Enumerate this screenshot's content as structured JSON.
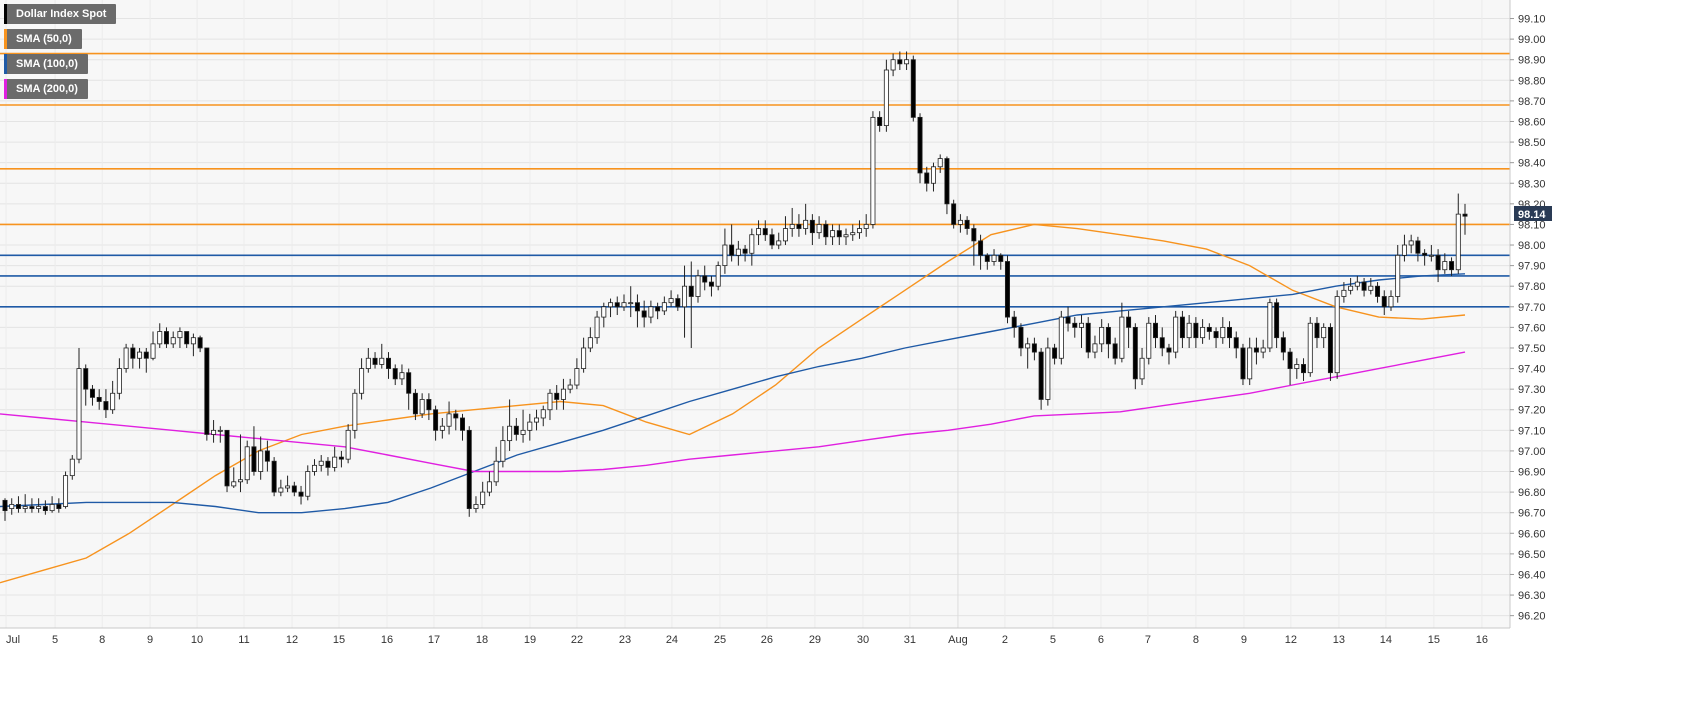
{
  "chart_data": {
    "type": "candlestick",
    "title": "Dollar Index Spot",
    "legend": [
      {
        "label": "Dollar Index Spot",
        "color": "#000000"
      },
      {
        "label": "SMA (50,0)",
        "color": "#f7931e"
      },
      {
        "label": "SMA (100,0)",
        "color": "#1f5aa6"
      },
      {
        "label": "SMA (200,0)",
        "color": "#e020e0"
      }
    ],
    "last_price": "98.14",
    "ylim": [
      96.14,
      99.19
    ],
    "y_ticks": [
      "99.10",
      "99.00",
      "98.90",
      "98.80",
      "98.70",
      "98.60",
      "98.50",
      "98.40",
      "98.30",
      "98.20",
      "98.10",
      "98.00",
      "97.90",
      "97.80",
      "97.70",
      "97.60",
      "97.50",
      "97.40",
      "97.30",
      "97.20",
      "97.10",
      "97.00",
      "96.90",
      "96.80",
      "96.70",
      "96.60",
      "96.50",
      "96.40",
      "96.30",
      "96.20"
    ],
    "x_ticks": [
      "Jul",
      "5",
      "8",
      "9",
      "10",
      "11",
      "12",
      "15",
      "16",
      "17",
      "18",
      "19",
      "22",
      "23",
      "24",
      "25",
      "26",
      "29",
      "30",
      "31",
      "Aug",
      "2",
      "5",
      "6",
      "7",
      "8",
      "9",
      "12",
      "13",
      "14",
      "15",
      "16"
    ],
    "grid": true,
    "horizontal_levels": [
      {
        "value": 98.93,
        "color": "#f7931e"
      },
      {
        "value": 98.68,
        "color": "#f7931e"
      },
      {
        "value": 98.37,
        "color": "#f7931e"
      },
      {
        "value": 98.1,
        "color": "#f7931e"
      },
      {
        "value": 97.95,
        "color": "#1f5aa6"
      },
      {
        "value": 97.85,
        "color": "#1f5aa6"
      },
      {
        "value": 97.7,
        "color": "#1f5aa6"
      }
    ],
    "candles": [
      [
        96.76,
        96.71,
        96.77,
        96.66
      ],
      [
        96.72,
        96.74,
        96.77,
        96.69
      ],
      [
        96.74,
        96.72,
        96.78,
        96.7
      ],
      [
        96.72,
        96.73,
        96.79,
        96.7
      ],
      [
        96.73,
        96.72,
        96.77,
        96.7
      ],
      [
        96.72,
        96.73,
        96.77,
        96.7
      ],
      [
        96.73,
        96.71,
        96.76,
        96.69
      ],
      [
        96.71,
        96.74,
        96.78,
        96.7
      ],
      [
        96.74,
        96.72,
        96.77,
        96.7
      ],
      [
        96.73,
        96.88,
        96.9,
        96.72
      ],
      [
        96.88,
        96.96,
        96.98,
        96.86
      ],
      [
        96.96,
        97.4,
        97.5,
        96.94
      ],
      [
        97.4,
        97.3,
        97.42,
        97.22
      ],
      [
        97.3,
        97.26,
        97.32,
        97.22
      ],
      [
        97.26,
        97.24,
        97.3,
        97.2
      ],
      [
        97.24,
        97.2,
        97.3,
        97.16
      ],
      [
        97.2,
        97.28,
        97.34,
        97.18
      ],
      [
        97.28,
        97.4,
        97.45,
        97.25
      ],
      [
        97.4,
        97.5,
        97.52,
        97.38
      ],
      [
        97.5,
        97.45,
        97.52,
        97.4
      ],
      [
        97.45,
        97.48,
        97.5,
        97.4
      ],
      [
        97.48,
        97.45,
        97.5,
        97.38
      ],
      [
        97.45,
        97.52,
        97.58,
        97.44
      ],
      [
        97.52,
        97.58,
        97.62,
        97.5
      ],
      [
        97.58,
        97.52,
        97.6,
        97.5
      ],
      [
        97.52,
        97.55,
        97.58,
        97.5
      ],
      [
        97.55,
        97.58,
        97.6,
        97.5
      ],
      [
        97.58,
        97.52,
        97.58,
        97.5
      ],
      [
        97.52,
        97.55,
        97.57,
        97.46
      ],
      [
        97.55,
        97.5,
        97.56,
        97.48
      ],
      [
        97.5,
        97.08,
        97.5,
        97.05
      ],
      [
        97.08,
        97.1,
        97.15,
        97.04
      ],
      [
        97.1,
        97.1,
        97.12,
        97.04
      ],
      [
        97.1,
        96.83,
        97.1,
        96.8
      ],
      [
        96.83,
        96.85,
        96.92,
        96.82
      ],
      [
        96.85,
        96.86,
        97.08,
        96.8
      ],
      [
        96.86,
        97.02,
        97.05,
        96.84
      ],
      [
        97.02,
        96.9,
        97.12,
        96.88
      ],
      [
        96.9,
        97.0,
        97.07,
        96.86
      ],
      [
        97.0,
        96.95,
        97.05,
        96.9
      ],
      [
        96.95,
        96.8,
        96.97,
        96.78
      ],
      [
        96.8,
        96.82,
        96.86,
        96.78
      ],
      [
        96.82,
        96.83,
        96.88,
        96.8
      ],
      [
        96.83,
        96.8,
        96.85,
        96.78
      ],
      [
        96.8,
        96.78,
        96.83,
        96.74
      ],
      [
        96.78,
        96.9,
        96.93,
        96.76
      ],
      [
        96.9,
        96.93,
        96.96,
        96.88
      ],
      [
        96.93,
        96.95,
        96.98,
        96.9
      ],
      [
        96.95,
        96.92,
        96.97,
        96.88
      ],
      [
        96.92,
        96.97,
        97.02,
        96.9
      ],
      [
        96.97,
        96.96,
        97.0,
        96.92
      ],
      [
        96.96,
        97.1,
        97.13,
        96.94
      ],
      [
        97.1,
        97.28,
        97.3,
        97.06
      ],
      [
        97.28,
        97.4,
        97.45,
        97.25
      ],
      [
        97.4,
        97.45,
        97.5,
        97.38
      ],
      [
        97.45,
        97.42,
        97.48,
        97.4
      ],
      [
        97.42,
        97.45,
        97.52,
        97.4
      ],
      [
        97.45,
        97.4,
        97.48,
        97.35
      ],
      [
        97.4,
        97.35,
        97.42,
        97.32
      ],
      [
        97.35,
        97.38,
        97.42,
        97.32
      ],
      [
        97.38,
        97.28,
        97.4,
        97.2
      ],
      [
        97.28,
        97.18,
        97.3,
        97.15
      ],
      [
        97.18,
        97.25,
        97.28,
        97.16
      ],
      [
        97.25,
        97.2,
        97.28,
        97.15
      ],
      [
        97.2,
        97.1,
        97.22,
        97.05
      ],
      [
        97.1,
        97.12,
        97.16,
        97.06
      ],
      [
        97.12,
        97.18,
        97.24,
        97.08
      ],
      [
        97.18,
        97.16,
        97.2,
        97.1
      ],
      [
        97.16,
        97.1,
        97.18,
        97.05
      ],
      [
        97.1,
        96.72,
        97.12,
        96.68
      ],
      [
        96.72,
        96.74,
        96.78,
        96.7
      ],
      [
        96.74,
        96.8,
        96.85,
        96.72
      ],
      [
        96.8,
        96.85,
        96.9,
        96.78
      ],
      [
        96.85,
        96.95,
        97.02,
        96.83
      ],
      [
        96.95,
        97.05,
        97.12,
        96.92
      ],
      [
        97.05,
        97.12,
        97.25,
        97.0
      ],
      [
        97.12,
        97.08,
        97.16,
        97.05
      ],
      [
        97.08,
        97.1,
        97.2,
        97.04
      ],
      [
        97.1,
        97.14,
        97.18,
        97.05
      ],
      [
        97.14,
        97.16,
        97.2,
        97.1
      ],
      [
        97.16,
        97.2,
        97.22,
        97.12
      ],
      [
        97.2,
        97.28,
        97.3,
        97.15
      ],
      [
        97.28,
        97.25,
        97.32,
        97.2
      ],
      [
        97.25,
        97.3,
        97.35,
        97.2
      ],
      [
        97.3,
        97.32,
        97.35,
        97.28
      ],
      [
        97.32,
        97.4,
        97.45,
        97.3
      ],
      [
        97.4,
        97.5,
        97.55,
        97.38
      ],
      [
        97.5,
        97.55,
        97.6,
        97.48
      ],
      [
        97.55,
        97.65,
        97.68,
        97.52
      ],
      [
        97.65,
        97.7,
        97.72,
        97.6
      ],
      [
        97.7,
        97.72,
        97.74,
        97.65
      ],
      [
        97.72,
        97.7,
        97.75,
        97.66
      ],
      [
        97.7,
        97.72,
        97.76,
        97.68
      ],
      [
        97.72,
        97.72,
        97.8,
        97.65
      ],
      [
        97.72,
        97.68,
        97.76,
        97.6
      ],
      [
        97.68,
        97.65,
        97.73,
        97.6
      ],
      [
        97.65,
        97.7,
        97.73,
        97.62
      ],
      [
        97.7,
        97.68,
        97.72,
        97.64
      ],
      [
        97.68,
        97.72,
        97.75,
        97.66
      ],
      [
        97.72,
        97.74,
        97.78,
        97.7
      ],
      [
        97.74,
        97.7,
        97.76,
        97.68
      ],
      [
        97.7,
        97.8,
        97.9,
        97.55
      ],
      [
        97.8,
        97.75,
        97.92,
        97.5
      ],
      [
        97.75,
        97.85,
        97.88,
        97.72
      ],
      [
        97.85,
        97.82,
        97.9,
        97.78
      ],
      [
        97.82,
        97.8,
        97.85,
        97.75
      ],
      [
        97.8,
        97.9,
        97.92,
        97.78
      ],
      [
        97.9,
        98.0,
        98.08,
        97.86
      ],
      [
        98.0,
        97.95,
        98.1,
        97.92
      ],
      [
        97.95,
        97.98,
        98.02,
        97.9
      ],
      [
        97.98,
        97.96,
        98.0,
        97.92
      ],
      [
        97.96,
        98.05,
        98.08,
        97.9
      ],
      [
        98.05,
        98.08,
        98.12,
        98.0
      ],
      [
        98.08,
        98.05,
        98.12,
        98.02
      ],
      [
        98.05,
        98.0,
        98.08,
        97.98
      ],
      [
        98.0,
        98.02,
        98.06,
        97.98
      ],
      [
        98.02,
        98.08,
        98.14,
        98.0
      ],
      [
        98.08,
        98.1,
        98.18,
        98.04
      ],
      [
        98.1,
        98.08,
        98.15,
        98.04
      ],
      [
        98.08,
        98.12,
        98.2,
        98.05
      ],
      [
        98.12,
        98.06,
        98.15,
        98.0
      ],
      [
        98.06,
        98.1,
        98.14,
        98.03
      ],
      [
        98.1,
        98.04,
        98.12,
        98.0
      ],
      [
        98.04,
        98.07,
        98.1,
        98.0
      ],
      [
        98.07,
        98.04,
        98.1,
        98.0
      ],
      [
        98.04,
        98.05,
        98.08,
        98.0
      ],
      [
        98.05,
        98.06,
        98.1,
        98.02
      ],
      [
        98.06,
        98.08,
        98.12,
        98.03
      ],
      [
        98.08,
        98.1,
        98.15,
        98.04
      ],
      [
        98.1,
        98.62,
        98.65,
        98.08
      ],
      [
        98.62,
        98.58,
        98.65,
        98.55
      ],
      [
        98.58,
        98.85,
        98.9,
        98.55
      ],
      [
        98.85,
        98.9,
        98.93,
        98.82
      ],
      [
        98.9,
        98.88,
        98.94,
        98.85
      ],
      [
        98.88,
        98.9,
        98.94,
        98.85
      ],
      [
        98.9,
        98.62,
        98.92,
        98.6
      ],
      [
        98.62,
        98.35,
        98.64,
        98.3
      ],
      [
        98.35,
        98.3,
        98.38,
        98.26
      ],
      [
        98.3,
        98.38,
        98.4,
        98.26
      ],
      [
        98.38,
        98.42,
        98.44,
        98.35
      ],
      [
        98.42,
        98.2,
        98.43,
        98.15
      ],
      [
        98.2,
        98.1,
        98.22,
        98.08
      ],
      [
        98.1,
        98.12,
        98.15,
        98.06
      ],
      [
        98.12,
        98.08,
        98.14,
        98.05
      ],
      [
        98.08,
        98.02,
        98.1,
        97.9
      ],
      [
        98.02,
        97.95,
        98.05,
        97.88
      ],
      [
        97.95,
        97.92,
        97.96,
        97.88
      ],
      [
        97.92,
        97.95,
        97.98,
        97.9
      ],
      [
        97.95,
        97.92,
        97.96,
        97.88
      ],
      [
        97.92,
        97.65,
        97.95,
        97.62
      ],
      [
        97.65,
        97.6,
        97.68,
        97.55
      ],
      [
        97.6,
        97.5,
        97.62,
        97.46
      ],
      [
        97.5,
        97.52,
        97.55,
        97.4
      ],
      [
        97.52,
        97.48,
        97.55,
        97.44
      ],
      [
        97.48,
        97.25,
        97.5,
        97.2
      ],
      [
        97.25,
        97.5,
        97.55,
        97.22
      ],
      [
        97.5,
        97.45,
        97.52,
        97.42
      ],
      [
        97.45,
        97.65,
        97.68,
        97.42
      ],
      [
        97.65,
        97.62,
        97.7,
        97.58
      ],
      [
        97.62,
        97.6,
        97.65,
        97.55
      ],
      [
        97.6,
        97.62,
        97.66,
        97.5
      ],
      [
        97.62,
        97.48,
        97.65,
        97.45
      ],
      [
        97.48,
        97.52,
        97.56,
        97.45
      ],
      [
        97.52,
        97.6,
        97.64,
        97.48
      ],
      [
        97.6,
        97.52,
        97.62,
        97.45
      ],
      [
        97.52,
        97.45,
        97.55,
        97.42
      ],
      [
        97.45,
        97.65,
        97.72,
        97.43
      ],
      [
        97.65,
        97.6,
        97.68,
        97.5
      ],
      [
        97.6,
        97.35,
        97.62,
        97.3
      ],
      [
        97.35,
        97.45,
        97.5,
        97.32
      ],
      [
        97.45,
        97.62,
        97.65,
        97.42
      ],
      [
        97.62,
        97.55,
        97.66,
        97.5
      ],
      [
        97.55,
        97.5,
        97.6,
        97.46
      ],
      [
        97.5,
        97.48,
        97.52,
        97.42
      ],
      [
        97.48,
        97.65,
        97.68,
        97.45
      ],
      [
        97.65,
        97.55,
        97.68,
        97.5
      ],
      [
        97.55,
        97.62,
        97.66,
        97.5
      ],
      [
        97.62,
        97.55,
        97.65,
        97.5
      ],
      [
        97.55,
        97.6,
        97.64,
        97.52
      ],
      [
        97.6,
        97.58,
        97.62,
        97.54
      ],
      [
        97.58,
        97.55,
        97.6,
        97.5
      ],
      [
        97.55,
        97.6,
        97.65,
        97.52
      ],
      [
        97.6,
        97.55,
        97.63,
        97.5
      ],
      [
        97.55,
        97.5,
        97.58,
        97.45
      ],
      [
        97.5,
        97.35,
        97.52,
        97.32
      ],
      [
        97.35,
        97.5,
        97.55,
        97.32
      ],
      [
        97.5,
        97.48,
        97.55,
        97.42
      ],
      [
        97.48,
        97.5,
        97.54,
        97.45
      ],
      [
        97.5,
        97.72,
        97.74,
        97.48
      ],
      [
        97.72,
        97.55,
        97.74,
        97.5
      ],
      [
        97.55,
        97.48,
        97.58,
        97.44
      ],
      [
        97.48,
        97.4,
        97.5,
        97.32
      ],
      [
        97.4,
        97.42,
        97.45,
        97.35
      ],
      [
        97.42,
        97.38,
        97.45,
        97.34
      ],
      [
        97.38,
        97.62,
        97.65,
        97.36
      ],
      [
        97.62,
        97.55,
        97.65,
        97.5
      ],
      [
        97.55,
        97.6,
        97.62,
        97.5
      ],
      [
        97.6,
        97.38,
        97.62,
        97.34
      ],
      [
        97.38,
        97.75,
        97.78,
        97.35
      ],
      [
        97.75,
        97.78,
        97.82,
        97.72
      ],
      [
        97.78,
        97.8,
        97.84,
        97.76
      ],
      [
        97.8,
        97.82,
        97.85,
        97.78
      ],
      [
        97.82,
        97.78,
        97.84,
        97.75
      ],
      [
        97.78,
        97.8,
        97.84,
        97.76
      ],
      [
        97.8,
        97.75,
        97.82,
        97.72
      ],
      [
        97.75,
        97.7,
        97.78,
        97.66
      ],
      [
        97.7,
        97.75,
        97.78,
        97.68
      ],
      [
        97.75,
        97.95,
        98.0,
        97.72
      ],
      [
        97.95,
        98.0,
        98.05,
        97.92
      ],
      [
        98.0,
        98.02,
        98.05,
        97.96
      ],
      [
        98.02,
        97.96,
        98.04,
        97.92
      ],
      [
        97.96,
        97.95,
        97.98,
        97.9
      ],
      [
        97.95,
        97.95,
        98.0,
        97.92
      ],
      [
        97.95,
        97.88,
        97.98,
        97.82
      ],
      [
        97.88,
        97.92,
        97.96,
        97.86
      ],
      [
        97.92,
        97.88,
        97.94,
        97.85
      ],
      [
        97.88,
        98.15,
        98.25,
        97.86
      ],
      [
        98.15,
        98.14,
        98.2,
        98.05
      ]
    ],
    "sma_50": [
      96.36,
      96.42,
      96.48,
      96.6,
      96.74,
      96.88,
      97.0,
      97.08,
      97.12,
      97.15,
      97.18,
      97.2,
      97.22,
      97.24,
      97.22,
      97.14,
      97.08,
      97.18,
      97.32,
      97.5,
      97.64,
      97.78,
      97.92,
      98.05,
      98.1,
      98.08,
      98.05,
      98.02,
      97.98,
      97.9,
      97.78,
      97.7,
      97.65,
      97.64,
      97.66
    ],
    "sma_100": [
      96.73,
      96.74,
      96.75,
      96.75,
      96.75,
      96.73,
      96.7,
      96.7,
      96.72,
      96.75,
      96.82,
      96.9,
      96.98,
      97.04,
      97.1,
      97.17,
      97.24,
      97.3,
      97.36,
      97.41,
      97.45,
      97.5,
      97.54,
      97.58,
      97.62,
      97.66,
      97.68,
      97.7,
      97.72,
      97.74,
      97.76,
      97.8,
      97.83,
      97.85,
      97.86
    ],
    "sma_200": [
      97.18,
      97.16,
      97.14,
      97.12,
      97.1,
      97.08,
      97.06,
      97.04,
      97.02,
      96.98,
      96.94,
      96.9,
      96.9,
      96.9,
      96.91,
      96.93,
      96.96,
      96.98,
      97.0,
      97.02,
      97.05,
      97.08,
      97.1,
      97.13,
      97.17,
      97.18,
      97.19,
      97.22,
      97.25,
      97.28,
      97.32,
      97.36,
      97.4,
      97.44,
      97.48
    ]
  }
}
